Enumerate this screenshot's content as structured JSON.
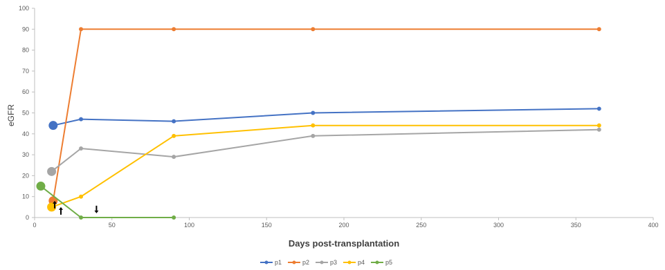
{
  "chart_data": {
    "type": "line",
    "title": "",
    "xlabel": "Days post-transplantation",
    "ylabel": "eGFR",
    "xlim": [
      0,
      400
    ],
    "ylim": [
      0,
      100
    ],
    "xticks": [
      0,
      50,
      100,
      150,
      200,
      250,
      300,
      350,
      400
    ],
    "yticks": [
      0,
      10,
      20,
      30,
      40,
      50,
      60,
      70,
      80,
      90,
      100
    ],
    "grid": false,
    "legend_position": "bottom",
    "series": [
      {
        "name": "p1",
        "color": "#4472C4",
        "x": [
          12,
          30,
          90,
          180,
          365
        ],
        "y": [
          44,
          47,
          46,
          50,
          52
        ],
        "first_point_enlarged": true
      },
      {
        "name": "p2",
        "color": "#ED7D31",
        "x": [
          12,
          30,
          90,
          180,
          365
        ],
        "y": [
          8,
          90,
          90,
          90,
          90
        ],
        "first_point_enlarged": true
      },
      {
        "name": "p3",
        "color": "#A5A5A5",
        "x": [
          11,
          30,
          90,
          180,
          365
        ],
        "y": [
          22,
          33,
          29,
          39,
          42
        ],
        "first_point_enlarged": true
      },
      {
        "name": "p4",
        "color": "#FFC000",
        "x": [
          11,
          30,
          90,
          180,
          365
        ],
        "y": [
          5,
          10,
          39,
          44,
          44
        ],
        "first_point_enlarged": true
      },
      {
        "name": "p5",
        "color": "#70AD47",
        "x": [
          4,
          30,
          90
        ],
        "y": [
          15,
          0,
          0
        ],
        "first_point_enlarged": true
      }
    ],
    "annotations": [
      {
        "type": "arrow-up",
        "x": 13,
        "y": 6
      },
      {
        "type": "arrow-up",
        "x": 17,
        "y": 3
      },
      {
        "type": "arrow-down",
        "x": 40,
        "y": 4
      }
    ]
  }
}
